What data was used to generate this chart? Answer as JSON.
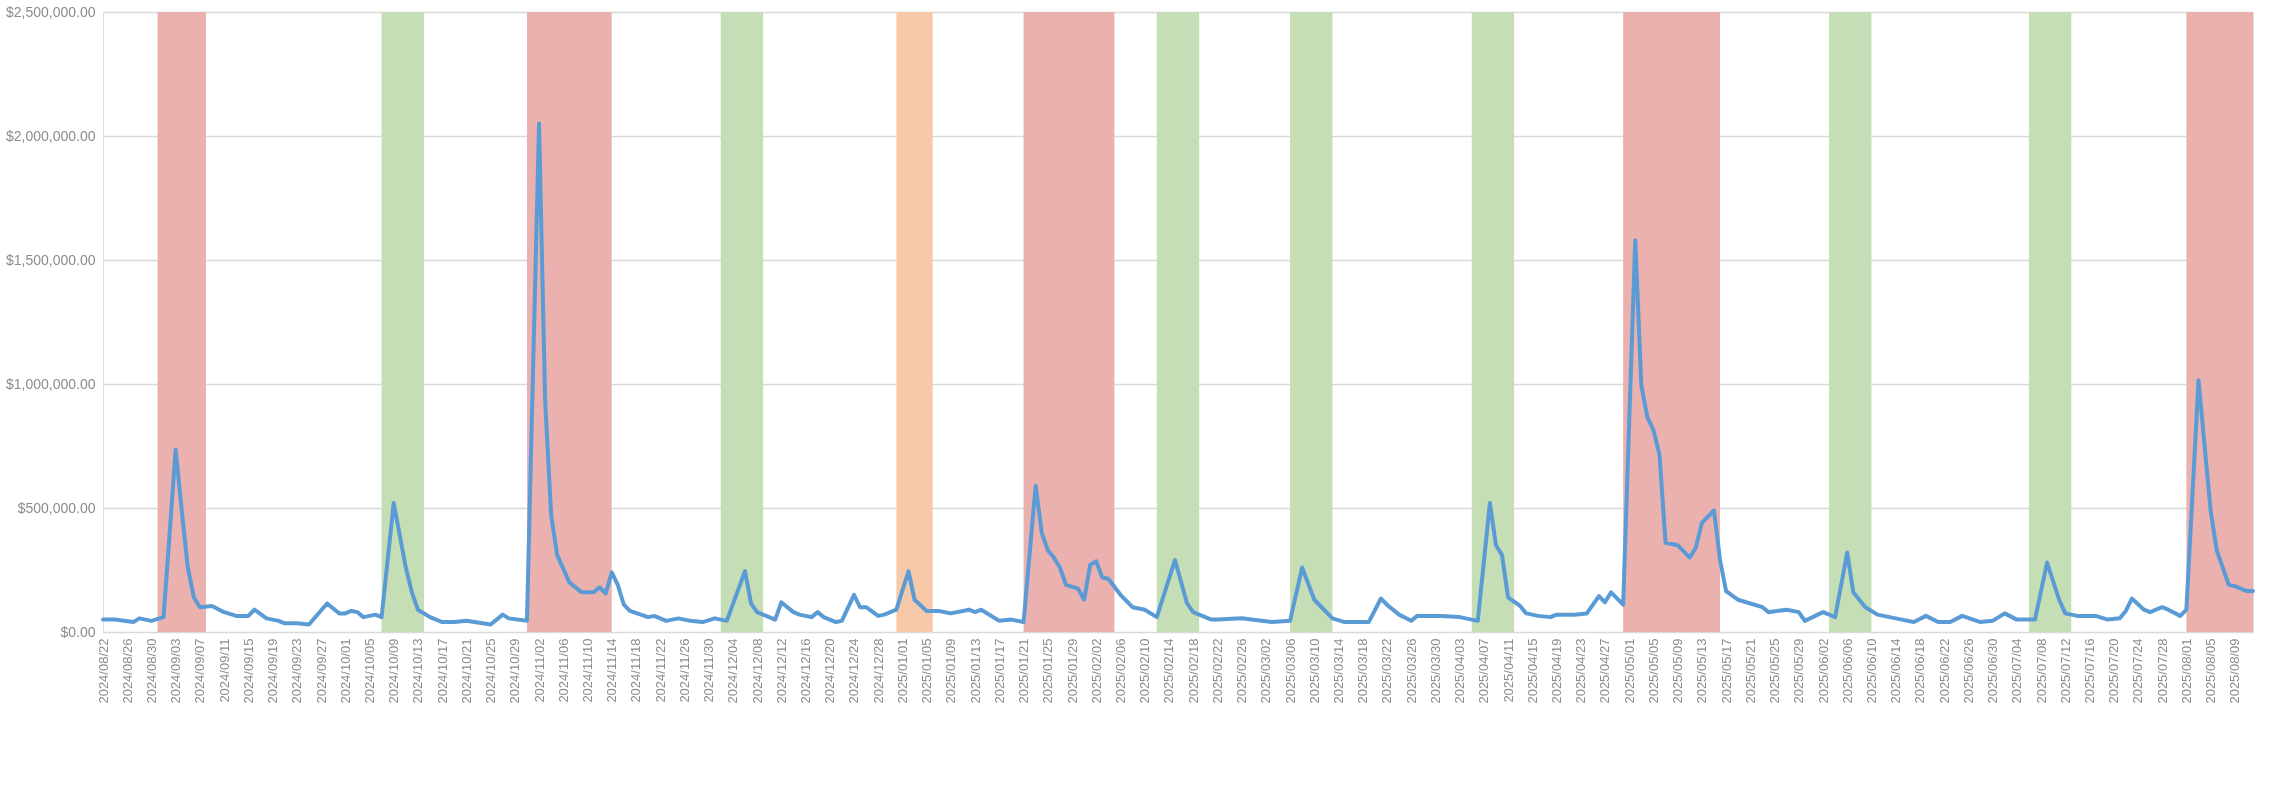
{
  "chart_data": {
    "type": "line",
    "x": [
      "2024-08-22",
      "2024-08-24",
      "2024-08-27",
      "2024-08-28",
      "2024-08-30",
      "2024-09-01",
      "2024-09-03",
      "2024-09-04",
      "2024-09-05",
      "2024-09-06",
      "2024-09-07",
      "2024-09-09",
      "2024-09-11",
      "2024-09-13",
      "2024-09-15",
      "2024-09-16",
      "2024-09-18",
      "2024-09-20",
      "2024-09-21",
      "2024-09-23",
      "2024-09-25",
      "2024-09-28",
      "2024-09-30",
      "2024-10-01",
      "2024-10-02",
      "2024-10-03",
      "2024-10-04",
      "2024-10-06",
      "2024-10-07",
      "2024-10-09",
      "2024-10-11",
      "2024-10-12",
      "2024-10-13",
      "2024-10-15",
      "2024-10-17",
      "2024-10-19",
      "2024-10-21",
      "2024-10-25",
      "2024-10-27",
      "2024-10-28",
      "2024-10-31",
      "2024-11-02",
      "2024-11-03",
      "2024-11-04",
      "2024-11-05",
      "2024-11-07",
      "2024-11-09",
      "2024-11-11",
      "2024-11-12",
      "2024-11-13",
      "2024-11-14",
      "2024-11-15",
      "2024-11-16",
      "2024-11-17",
      "2024-11-20",
      "2024-11-21",
      "2024-11-23",
      "2024-11-25",
      "2024-11-27",
      "2024-11-29",
      "2024-12-01",
      "2024-12-03",
      "2024-12-06",
      "2024-12-07",
      "2024-12-08",
      "2024-12-11",
      "2024-12-12",
      "2024-12-14",
      "2024-12-15",
      "2024-12-17",
      "2024-12-18",
      "2024-12-19",
      "2024-12-21",
      "2024-12-22",
      "2024-12-24",
      "2024-12-25",
      "2024-12-26",
      "2024-12-28",
      "2024-12-29",
      "2024-12-31",
      "2025-01-02",
      "2025-01-03",
      "2025-01-05",
      "2025-01-07",
      "2025-01-09",
      "2025-01-12",
      "2025-01-13",
      "2025-01-14",
      "2025-01-17",
      "2025-01-19",
      "2025-01-21",
      "2025-01-23",
      "2025-01-24",
      "2025-01-25",
      "2025-01-26",
      "2025-01-27",
      "2025-01-28",
      "2025-01-30",
      "2025-01-31",
      "2025-02-01",
      "2025-02-02",
      "2025-02-03",
      "2025-02-04",
      "2025-02-06",
      "2025-02-08",
      "2025-02-10",
      "2025-02-12",
      "2025-02-15",
      "2025-02-17",
      "2025-02-18",
      "2025-02-21",
      "2025-02-22",
      "2025-02-26",
      "2025-03-03",
      "2025-03-06",
      "2025-03-08",
      "2025-03-10",
      "2025-03-13",
      "2025-03-15",
      "2025-03-19",
      "2025-03-21",
      "2025-03-22",
      "2025-03-24",
      "2025-03-26",
      "2025-03-27",
      "2025-03-31",
      "2025-04-03",
      "2025-04-06",
      "2025-04-08",
      "2025-04-09",
      "2025-04-10",
      "2025-04-11",
      "2025-04-13",
      "2025-04-14",
      "2025-04-16",
      "2025-04-18",
      "2025-04-19",
      "2025-04-22",
      "2025-04-24",
      "2025-04-26",
      "2025-04-27",
      "2025-04-28",
      "2025-04-30",
      "2025-05-02",
      "2025-05-03",
      "2025-05-04",
      "2025-05-05",
      "2025-05-06",
      "2025-05-07",
      "2025-05-09",
      "2025-05-11",
      "2025-05-12",
      "2025-05-13",
      "2025-05-15",
      "2025-05-16",
      "2025-05-17",
      "2025-05-19",
      "2025-05-21",
      "2025-05-23",
      "2025-05-24",
      "2025-05-27",
      "2025-05-29",
      "2025-05-30",
      "2025-06-02",
      "2025-06-04",
      "2025-06-06",
      "2025-06-07",
      "2025-06-09",
      "2025-06-11",
      "2025-06-15",
      "2025-06-17",
      "2025-06-19",
      "2025-06-21",
      "2025-06-23",
      "2025-06-25",
      "2025-06-28",
      "2025-06-30",
      "2025-07-02",
      "2025-07-04",
      "2025-07-07",
      "2025-07-09",
      "2025-07-11",
      "2025-07-12",
      "2025-07-14",
      "2025-07-17",
      "2025-07-19",
      "2025-07-21",
      "2025-07-22",
      "2025-07-23",
      "2025-07-25",
      "2025-07-26",
      "2025-07-28",
      "2025-07-29",
      "2025-07-31",
      "2025-08-01",
      "2025-08-03",
      "2025-08-05",
      "2025-08-06",
      "2025-08-08",
      "2025-08-09",
      "2025-08-11",
      "2025-08-12"
    ],
    "series": [
      {
        "color": "#5b9bd5",
        "values": [
          50000,
          50000,
          40000,
          55000,
          45000,
          60000,
          735000,
          490000,
          260000,
          140000,
          100000,
          105000,
          80000,
          65000,
          65000,
          90000,
          55000,
          45000,
          35000,
          35000,
          30000,
          115000,
          75000,
          75000,
          85000,
          80000,
          60000,
          70000,
          60000,
          520000,
          260000,
          160000,
          90000,
          60000,
          40000,
          40000,
          45000,
          30000,
          70000,
          55000,
          45000,
          2050000,
          935000,
          470000,
          310000,
          200000,
          160000,
          160000,
          180000,
          155000,
          240000,
          190000,
          110000,
          85000,
          60000,
          65000,
          45000,
          55000,
          45000,
          40000,
          55000,
          45000,
          245000,
          115000,
          80000,
          50000,
          120000,
          80000,
          70000,
          60000,
          80000,
          60000,
          40000,
          45000,
          150000,
          100000,
          100000,
          65000,
          70000,
          90000,
          245000,
          130000,
          85000,
          85000,
          75000,
          90000,
          80000,
          90000,
          45000,
          50000,
          40000,
          590000,
          400000,
          330000,
          300000,
          260000,
          190000,
          175000,
          130000,
          270000,
          285000,
          220000,
          215000,
          150000,
          100000,
          90000,
          60000,
          290000,
          115000,
          80000,
          50000,
          50000,
          55000,
          40000,
          45000,
          260000,
          130000,
          55000,
          40000,
          40000,
          135000,
          110000,
          70000,
          45000,
          65000,
          65000,
          60000,
          45000,
          520000,
          350000,
          310000,
          140000,
          105000,
          75000,
          65000,
          60000,
          70000,
          70000,
          75000,
          145000,
          120000,
          160000,
          110000,
          1580000,
          995000,
          865000,
          815000,
          715000,
          360000,
          350000,
          300000,
          340000,
          440000,
          490000,
          290000,
          165000,
          130000,
          115000,
          100000,
          80000,
          90000,
          80000,
          45000,
          80000,
          60000,
          320000,
          160000,
          100000,
          70000,
          50000,
          40000,
          65000,
          40000,
          40000,
          65000,
          40000,
          45000,
          75000,
          50000,
          50000,
          280000,
          130000,
          75000,
          65000,
          65000,
          50000,
          55000,
          85000,
          135000,
          90000,
          80000,
          100000,
          90000,
          65000,
          90000,
          1015000,
          490000,
          330000,
          190000,
          185000,
          165000,
          165000
        ]
      }
    ],
    "xlim": [
      "2024-08-22",
      "2025-08-12"
    ],
    "ylim": [
      0,
      2500000
    ],
    "yticks": [
      {
        "value": 0,
        "label": "$0.00"
      },
      {
        "value": 500000,
        "label": "$500,000.00"
      },
      {
        "value": 1000000,
        "label": "$1,000,000.00"
      },
      {
        "value": 1500000,
        "label": "$1,500,000.00"
      },
      {
        "value": 2000000,
        "label": "$2,000,000.00"
      },
      {
        "value": 2500000,
        "label": "$2,500,000.00"
      }
    ],
    "xticks": [
      {
        "value": "2024-08-22",
        "label": "2024/08/22"
      },
      {
        "value": "2024-08-26",
        "label": "2024/08/26"
      },
      {
        "value": "2024-08-30",
        "label": "2024/08/30"
      },
      {
        "value": "2024-09-03",
        "label": "2024/09/03"
      },
      {
        "value": "2024-09-07",
        "label": "2024/09/07"
      },
      {
        "value": "2024-09-11",
        "label": "2024/09/11"
      },
      {
        "value": "2024-09-15",
        "label": "2024/09/15"
      },
      {
        "value": "2024-09-19",
        "label": "2024/09/19"
      },
      {
        "value": "2024-09-23",
        "label": "2024/09/23"
      },
      {
        "value": "2024-09-27",
        "label": "2024/09/27"
      },
      {
        "value": "2024-10-01",
        "label": "2024/10/01"
      },
      {
        "value": "2024-10-05",
        "label": "2024/10/05"
      },
      {
        "value": "2024-10-09",
        "label": "2024/10/09"
      },
      {
        "value": "2024-10-13",
        "label": "2024/10/13"
      },
      {
        "value": "2024-10-17",
        "label": "2024/10/17"
      },
      {
        "value": "2024-10-21",
        "label": "2024/10/21"
      },
      {
        "value": "2024-10-25",
        "label": "2024/10/25"
      },
      {
        "value": "2024-10-29",
        "label": "2024/10/29"
      },
      {
        "value": "2024-11-02",
        "label": "2024/11/02"
      },
      {
        "value": "2024-11-06",
        "label": "2024/11/06"
      },
      {
        "value": "2024-11-10",
        "label": "2024/11/10"
      },
      {
        "value": "2024-11-14",
        "label": "2024/11/14"
      },
      {
        "value": "2024-11-18",
        "label": "2024/11/18"
      },
      {
        "value": "2024-11-22",
        "label": "2024/11/22"
      },
      {
        "value": "2024-11-26",
        "label": "2024/11/26"
      },
      {
        "value": "2024-11-30",
        "label": "2024/11/30"
      },
      {
        "value": "2024-12-04",
        "label": "2024/12/04"
      },
      {
        "value": "2024-12-08",
        "label": "2024/12/08"
      },
      {
        "value": "2024-12-12",
        "label": "2024/12/12"
      },
      {
        "value": "2024-12-16",
        "label": "2024/12/16"
      },
      {
        "value": "2024-12-20",
        "label": "2024/12/20"
      },
      {
        "value": "2024-12-24",
        "label": "2024/12/24"
      },
      {
        "value": "2024-12-28",
        "label": "2024/12/28"
      },
      {
        "value": "2025-01-01",
        "label": "2025/01/01"
      },
      {
        "value": "2025-01-05",
        "label": "2025/01/05"
      },
      {
        "value": "2025-01-09",
        "label": "2025/01/09"
      },
      {
        "value": "2025-01-13",
        "label": "2025/01/13"
      },
      {
        "value": "2025-01-17",
        "label": "2025/01/17"
      },
      {
        "value": "2025-01-21",
        "label": "2025/01/21"
      },
      {
        "value": "2025-01-25",
        "label": "2025/01/25"
      },
      {
        "value": "2025-01-29",
        "label": "2025/01/29"
      },
      {
        "value": "2025-02-02",
        "label": "2025/02/02"
      },
      {
        "value": "2025-02-06",
        "label": "2025/02/06"
      },
      {
        "value": "2025-02-10",
        "label": "2025/02/10"
      },
      {
        "value": "2025-02-14",
        "label": "2025/02/14"
      },
      {
        "value": "2025-02-18",
        "label": "2025/02/18"
      },
      {
        "value": "2025-02-22",
        "label": "2025/02/22"
      },
      {
        "value": "2025-02-26",
        "label": "2025/02/26"
      },
      {
        "value": "2025-03-02",
        "label": "2025/03/02"
      },
      {
        "value": "2025-03-06",
        "label": "2025/03/06"
      },
      {
        "value": "2025-03-10",
        "label": "2025/03/10"
      },
      {
        "value": "2025-03-14",
        "label": "2025/03/14"
      },
      {
        "value": "2025-03-18",
        "label": "2025/03/18"
      },
      {
        "value": "2025-03-22",
        "label": "2025/03/22"
      },
      {
        "value": "2025-03-26",
        "label": "2025/03/26"
      },
      {
        "value": "2025-03-30",
        "label": "2025/03/30"
      },
      {
        "value": "2025-04-03",
        "label": "2025/04/03"
      },
      {
        "value": "2025-04-07",
        "label": "2025/04/07"
      },
      {
        "value": "2025-04-11",
        "label": "2025/04/11"
      },
      {
        "value": "2025-04-15",
        "label": "2025/04/15"
      },
      {
        "value": "2025-04-19",
        "label": "2025/04/19"
      },
      {
        "value": "2025-04-23",
        "label": "2025/04/23"
      },
      {
        "value": "2025-04-27",
        "label": "2025/04/27"
      },
      {
        "value": "2025-05-01",
        "label": "2025/05/01"
      },
      {
        "value": "2025-05-05",
        "label": "2025/05/05"
      },
      {
        "value": "2025-05-09",
        "label": "2025/05/09"
      },
      {
        "value": "2025-05-13",
        "label": "2025/05/13"
      },
      {
        "value": "2025-05-17",
        "label": "2025/05/17"
      },
      {
        "value": "2025-05-21",
        "label": "2025/05/21"
      },
      {
        "value": "2025-05-25",
        "label": "2025/05/25"
      },
      {
        "value": "2025-05-29",
        "label": "2025/05/29"
      },
      {
        "value": "2025-06-02",
        "label": "2025/06/02"
      },
      {
        "value": "2025-06-06",
        "label": "2025/06/06"
      },
      {
        "value": "2025-06-10",
        "label": "2025/06/10"
      },
      {
        "value": "2025-06-14",
        "label": "2025/06/14"
      },
      {
        "value": "2025-06-18",
        "label": "2025/06/18"
      },
      {
        "value": "2025-06-22",
        "label": "2025/06/22"
      },
      {
        "value": "2025-06-26",
        "label": "2025/06/26"
      },
      {
        "value": "2025-06-30",
        "label": "2025/06/30"
      },
      {
        "value": "2025-07-04",
        "label": "2025/07/04"
      },
      {
        "value": "2025-07-08",
        "label": "2025/07/08"
      },
      {
        "value": "2025-07-12",
        "label": "2025/07/12"
      },
      {
        "value": "2025-07-16",
        "label": "2025/07/16"
      },
      {
        "value": "2025-07-20",
        "label": "2025/07/20"
      },
      {
        "value": "2025-07-24",
        "label": "2025/07/24"
      },
      {
        "value": "2025-07-28",
        "label": "2025/07/28"
      },
      {
        "value": "2025-08-01",
        "label": "2025/08/01"
      },
      {
        "value": "2025-08-05",
        "label": "2025/08/05"
      },
      {
        "value": "2025-08-09",
        "label": "2025/08/09"
      }
    ],
    "grid": "y",
    "bands": [
      {
        "axis": "x",
        "from": "2024-08-31",
        "to": "2024-09-08",
        "color": "#eab1ae"
      },
      {
        "axis": "x",
        "from": "2024-10-07",
        "to": "2024-10-14",
        "color": "#c6deb6"
      },
      {
        "axis": "x",
        "from": "2024-10-31",
        "to": "2024-11-14",
        "color": "#eab1ae"
      },
      {
        "axis": "x",
        "from": "2024-12-02",
        "to": "2024-12-09",
        "color": "#c6deb6"
      },
      {
        "axis": "x",
        "from": "2024-12-31",
        "to": "2025-01-06",
        "color": "#f7c9a8"
      },
      {
        "axis": "x",
        "from": "2025-01-21",
        "to": "2025-02-05",
        "color": "#eab1ae"
      },
      {
        "axis": "x",
        "from": "2025-02-12",
        "to": "2025-02-19",
        "color": "#c6deb6"
      },
      {
        "axis": "x",
        "from": "2025-03-06",
        "to": "2025-03-13",
        "color": "#c6deb6"
      },
      {
        "axis": "x",
        "from": "2025-04-05",
        "to": "2025-04-12",
        "color": "#c6deb6"
      },
      {
        "axis": "x",
        "from": "2025-04-30",
        "to": "2025-05-16",
        "color": "#eab1ae"
      },
      {
        "axis": "x",
        "from": "2025-06-03",
        "to": "2025-06-10",
        "color": "#c6deb6"
      },
      {
        "axis": "x",
        "from": "2025-07-06",
        "to": "2025-07-13",
        "color": "#c6deb6"
      },
      {
        "axis": "x",
        "from": "2025-08-01",
        "to": "2025-08-12",
        "color": "#eab1ae"
      }
    ]
  }
}
